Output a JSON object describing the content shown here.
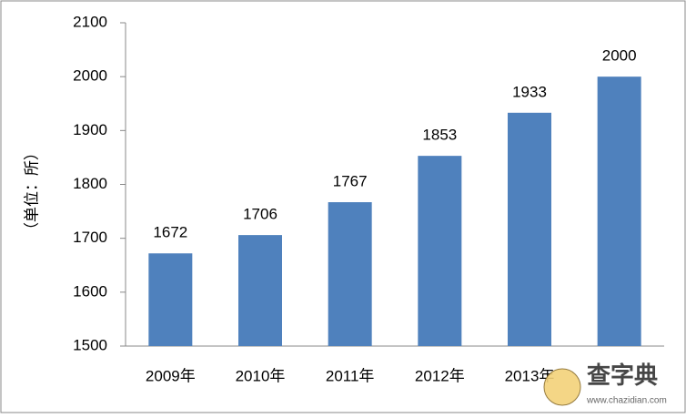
{
  "chart_data": {
    "type": "bar",
    "y_label": "（单位：所）",
    "categories": [
      "2009年",
      "2010年",
      "2011年",
      "2012年",
      "2013年",
      null
    ],
    "values": [
      1672,
      1706,
      1767,
      1853,
      1933,
      2000
    ],
    "color": "#4f81bd",
    "ylim": [
      1500,
      2100
    ],
    "yticks": [
      1500,
      1600,
      1700,
      1800,
      1900,
      2000,
      2100
    ],
    "data_labels": true
  },
  "watermark": {
    "title": "查字典",
    "url": "www.chazidian.com"
  }
}
